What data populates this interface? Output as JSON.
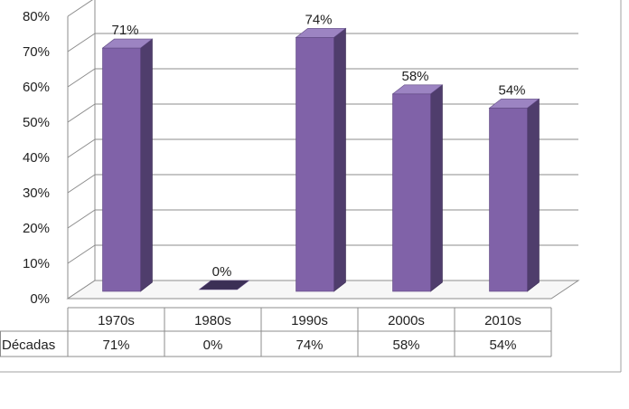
{
  "chart_data": {
    "type": "bar",
    "style": "3d-column-with-data-table",
    "categories": [
      "1970s",
      "1980s",
      "1990s",
      "2000s",
      "2010s"
    ],
    "series": [
      {
        "name": "Décadas",
        "values": [
          71,
          0,
          74,
          58,
          54
        ],
        "color": "#8062a8"
      }
    ],
    "data_labels": [
      "71%",
      "0%",
      "74%",
      "58%",
      "54%"
    ],
    "y_ticks": [
      "0%",
      "10%",
      "20%",
      "30%",
      "40%",
      "50%",
      "60%",
      "70%",
      "80%"
    ],
    "ylim": [
      0,
      80
    ],
    "y_unit": "%",
    "grid": true,
    "data_table": {
      "row_label": "Décadas",
      "values": [
        "71%",
        "0%",
        "74%",
        "58%",
        "54%"
      ]
    }
  }
}
